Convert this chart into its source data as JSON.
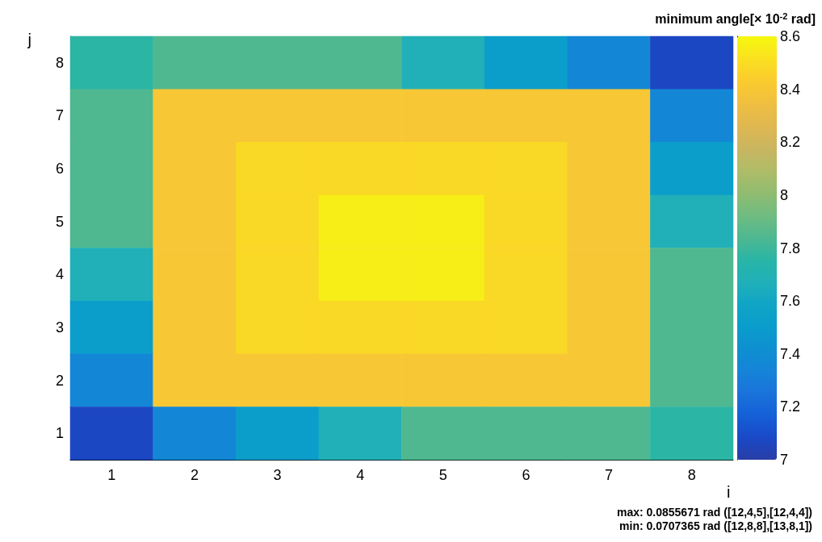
{
  "chart_data": {
    "type": "heatmap",
    "clabel": "minimum angle[× 10$^{-2}$ rad]",
    "xlabel": "i",
    "ylabel": "j",
    "categories": [
      "1",
      "2",
      "3",
      "4",
      "5",
      "6",
      "7",
      "8"
    ],
    "y_categories": [
      "8",
      "7",
      "6",
      "5",
      "4",
      "3",
      "2",
      "1"
    ],
    "cells": [
      [
        7.76,
        7.84,
        7.84,
        7.84,
        7.68,
        7.52,
        7.36,
        7.07
      ],
      [
        7.84,
        8.4,
        8.4,
        8.4,
        8.4,
        8.4,
        8.4,
        7.36
      ],
      [
        7.84,
        8.4,
        8.48,
        8.48,
        8.48,
        8.48,
        8.4,
        7.52
      ],
      [
        7.84,
        8.4,
        8.48,
        8.56,
        8.56,
        8.48,
        8.4,
        7.68
      ],
      [
        7.68,
        8.4,
        8.48,
        8.56,
        8.56,
        8.48,
        8.4,
        7.84
      ],
      [
        7.52,
        8.4,
        8.48,
        8.48,
        8.48,
        8.48,
        8.4,
        7.84
      ],
      [
        7.36,
        8.4,
        8.4,
        8.4,
        8.4,
        8.4,
        8.4,
        7.84
      ],
      [
        7.07,
        7.36,
        7.52,
        7.68,
        7.84,
        7.84,
        7.84,
        7.76
      ]
    ],
    "clim": [
      7,
      8.6
    ],
    "cticks": [
      7,
      7.2,
      7.4,
      7.6,
      7.8,
      8,
      8.2,
      8.4,
      8.6
    ],
    "annotations": [
      "max: 0.0855671 rad ([12,4,5],[12,4,4])",
      "min: 0.0707365 rad ([12,8,8],[13,8,1])"
    ]
  }
}
